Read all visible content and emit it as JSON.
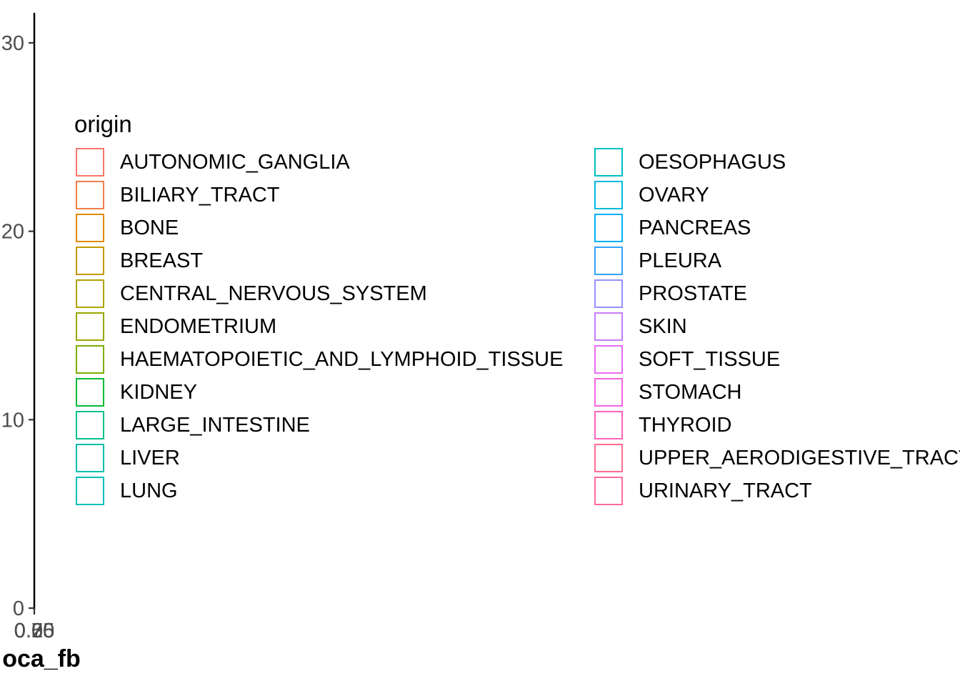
{
  "chart_data": {
    "type": "scatter",
    "ylabel": "",
    "xlabel": "oca_fb",
    "y_ticks": [
      "0",
      "10",
      "20",
      "30"
    ],
    "y_tick_values": [
      0,
      10,
      20,
      30
    ],
    "ylim": [
      0,
      31.5
    ],
    "x_tick_labels_overlapping": "0.00 0.25 0.50 0.75",
    "grid": false,
    "legend": {
      "title": "origin",
      "placement": "inside-left",
      "columns": [
        [
          {
            "label": "AUTONOMIC_GANGLIA",
            "color": "#F8766D"
          },
          {
            "label": "BILIARY_TRACT",
            "color": "#EF7F49"
          },
          {
            "label": "BONE",
            "color": "#E38900"
          },
          {
            "label": "BREAST",
            "color": "#C49A00"
          },
          {
            "label": "CENTRAL_NERVOUS_SYSTEM",
            "color": "#AEA200"
          },
          {
            "label": "ENDOMETRIUM",
            "color": "#99A800"
          },
          {
            "label": "HAEMATOPOIETIC_AND_LYMPHOID_TISSUE",
            "color": "#7CAE00"
          },
          {
            "label": "KIDNEY",
            "color": "#00BA38"
          },
          {
            "label": "LARGE_INTESTINE",
            "color": "#00C08B"
          },
          {
            "label": "LIVER",
            "color": "#00BFA8"
          },
          {
            "label": "LUNG",
            "color": "#00BFB8"
          }
        ],
        [
          {
            "label": "OESOPHAGUS",
            "color": "#00BFC4"
          },
          {
            "label": "OVARY",
            "color": "#00BAE0"
          },
          {
            "label": "PANCREAS",
            "color": "#00B0F6"
          },
          {
            "label": "PLEURA",
            "color": "#35A2FF"
          },
          {
            "label": "PROSTATE",
            "color": "#9590FF"
          },
          {
            "label": "SKIN",
            "color": "#C77CFF"
          },
          {
            "label": "SOFT_TISSUE",
            "color": "#E76BF3"
          },
          {
            "label": "STOMACH",
            "color": "#F564E3"
          },
          {
            "label": "THYROID",
            "color": "#FF62BC"
          },
          {
            "label": "UPPER_AERODIGESTIVE_TRACT",
            "color": "#FF6C91"
          },
          {
            "label": "URINARY_TRACT",
            "color": "#FF6A98"
          }
        ]
      ]
    }
  }
}
